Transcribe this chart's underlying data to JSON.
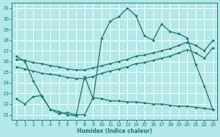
{
  "xlabel": "Humidex (Indice chaleur)",
  "background_color": "#b2e8e8",
  "grid_color": "#ffffff",
  "line_color": "#1a7a6e",
  "xlim": [
    -0.5,
    23.5
  ],
  "ylim": [
    20.5,
    31.5
  ],
  "yticks": [
    21,
    22,
    23,
    24,
    25,
    26,
    27,
    28,
    29,
    30,
    31
  ],
  "xticks": [
    0,
    1,
    2,
    3,
    4,
    5,
    6,
    7,
    8,
    9,
    10,
    11,
    12,
    13,
    14,
    15,
    16,
    17,
    18,
    19,
    20,
    21,
    22,
    23
  ],
  "line1_x": [
    0,
    1,
    2,
    3,
    4,
    5,
    6,
    7,
    8,
    9,
    10,
    11,
    12,
    13,
    14,
    15,
    16,
    17,
    18,
    19,
    20,
    21,
    22,
    23
  ],
  "line1_y": [
    26.5,
    26.0,
    24.2,
    22.7,
    21.5,
    21.3,
    21.0,
    20.9,
    24.6,
    22.5,
    28.2,
    29.8,
    30.2,
    31.0,
    30.3,
    28.4,
    28.0,
    29.5,
    28.8,
    28.6,
    28.2,
    25.7,
    23.7,
    21.5
  ],
  "line2_x": [
    0,
    1,
    2,
    3,
    4,
    5,
    6,
    7,
    8,
    9,
    10,
    11,
    12,
    13,
    14,
    15,
    16,
    17,
    18,
    19,
    20,
    21,
    22,
    23
  ],
  "line2_y": [
    26.2,
    26.1,
    25.9,
    25.8,
    25.6,
    25.5,
    25.3,
    25.2,
    25.2,
    25.4,
    25.6,
    25.8,
    26.0,
    26.2,
    26.5,
    26.6,
    26.8,
    27.0,
    27.2,
    27.5,
    27.8,
    27.5,
    27.0,
    28.0
  ],
  "line3_x": [
    0,
    1,
    2,
    3,
    4,
    5,
    6,
    7,
    8,
    9,
    10,
    11,
    12,
    13,
    14,
    15,
    16,
    17,
    18,
    19,
    20,
    21,
    22,
    23
  ],
  "line3_y": [
    25.5,
    25.3,
    25.1,
    24.9,
    24.8,
    24.7,
    24.5,
    24.4,
    24.4,
    24.6,
    24.9,
    25.1,
    25.3,
    25.5,
    25.8,
    25.9,
    26.1,
    26.3,
    26.5,
    26.8,
    27.1,
    26.8,
    26.3,
    27.3
  ],
  "line4_x": [
    0,
    1,
    2,
    3,
    4,
    5,
    6,
    7,
    8,
    9,
    10,
    11,
    12,
    13,
    14,
    15,
    16,
    17,
    18,
    19,
    20,
    21,
    22,
    23
  ],
  "line4_y": [
    22.5,
    22.0,
    22.7,
    22.8,
    21.5,
    21.1,
    21.2,
    21.0,
    21.0,
    22.6,
    22.5,
    22.3,
    22.3,
    22.2,
    22.2,
    22.1,
    22.0,
    22.0,
    21.9,
    21.8,
    21.8,
    21.7,
    21.6,
    21.5
  ]
}
